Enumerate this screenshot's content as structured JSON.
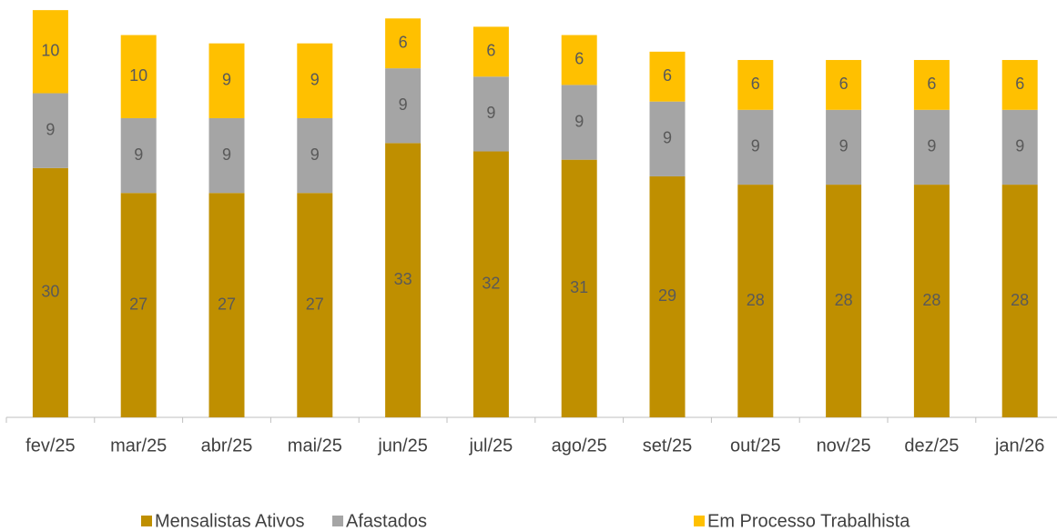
{
  "chart_data": {
    "type": "stacked_bar",
    "categories": [
      "fev/25",
      "mar/25",
      "abr/25",
      "mai/25",
      "jun/25",
      "jul/25",
      "ago/25",
      "set/25",
      "out/25",
      "nov/25",
      "dez/25",
      "jan/26"
    ],
    "series": [
      {
        "name": "Mensalistas Ativos",
        "color": "#bf8f00",
        "values": [
          30,
          27,
          27,
          27,
          33,
          32,
          31,
          29,
          28,
          28,
          28,
          28
        ]
      },
      {
        "name": "Afastados",
        "color": "#a5a5a5",
        "values": [
          9,
          9,
          9,
          9,
          9,
          9,
          9,
          9,
          9,
          9,
          9,
          9
        ]
      },
      {
        "name": "Em Processo Trabalhista",
        "color": "#ffc000",
        "values": [
          10,
          10,
          9,
          9,
          6,
          6,
          6,
          6,
          6,
          6,
          6,
          6
        ]
      }
    ]
  }
}
